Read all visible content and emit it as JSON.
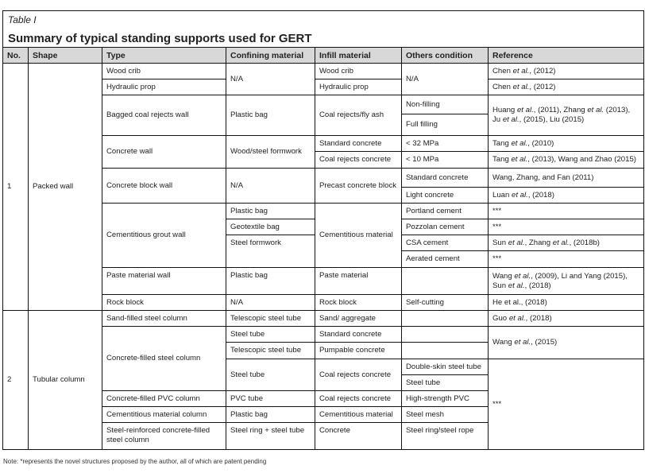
{
  "label": "Table I",
  "title": "Summary of typical standing supports used for GERT",
  "headers": [
    "No.",
    "Shape",
    "Type",
    "Confining material",
    "Infill material",
    "Others condition",
    "Reference"
  ],
  "rows": [
    [
      {
        "t": "1",
        "rs": 14
      },
      {
        "t": "Packed wall",
        "rs": 14
      },
      {
        "t": "Wood crib"
      },
      {
        "t": "N/A",
        "rs": 2
      },
      {
        "t": "Wood crib"
      },
      {
        "t": "N/A",
        "rs": 2
      },
      {
        "t": "Chen et al., (2012)"
      }
    ],
    [
      {
        "t": "Hydraulic  prop"
      },
      {
        "t": "Hydraulic  prop"
      },
      {
        "t": "Chen et al., (2012)"
      }
    ],
    [
      {
        "t": "Bagged coal rejects wall",
        "rs": 2
      },
      {
        "t": "Plastic bag",
        "rs": 2
      },
      {
        "t": "Coal rejects/fly ash",
        "rs": 2
      },
      {
        "t": "Non-filling"
      },
      {
        "t": "Huang et al., (2011), Zhang et al. (2013), Ju et al., (2015), Liu (2015)",
        "rs": 2
      }
    ],
    [
      {
        "t": "Full filling"
      }
    ],
    [
      {
        "t": "Concrete wall",
        "rs": 2
      },
      {
        "t": "Wood/steel formwork",
        "rs": 2
      },
      {
        "t": "Standard concrete"
      },
      {
        "t": "< 32 MPa"
      },
      {
        "t": "Tang et al., (2010)"
      }
    ],
    [
      {
        "t": "Coal rejects concrete"
      },
      {
        "t": "< 10 MPa"
      },
      {
        "t": "Tang et al., (2013), Wang and Zhao (2015)"
      }
    ],
    [
      {
        "t": "Concrete block wall",
        "rs": 2
      },
      {
        "t": "N/A",
        "rs": 2
      },
      {
        "t": "Precast concrete block",
        "rs": 2
      },
      {
        "t": "Standard concrete"
      },
      {
        "t": "Wang, Zhang, and Fan (2011)"
      }
    ],
    [
      {
        "t": "Light concrete"
      },
      {
        "t": "Luan et al., (2018)"
      }
    ],
    [
      {
        "t": "Cementitious grout wall",
        "rs": 4
      },
      {
        "t": "Plastic bag"
      },
      {
        "t": "Cementitious material",
        "rs": 4
      },
      {
        "t": "Portland cement"
      },
      {
        "t": "***"
      }
    ],
    [
      {
        "t": "Geotextile bag"
      },
      {
        "t": "Pozzolan cement"
      },
      {
        "t": "***"
      }
    ],
    [
      {
        "t": "Steel formwork",
        "rs": 2,
        "top": true
      },
      {
        "t": "CSA cement"
      },
      {
        "t": "Sun et al., Zhang et al., (2018b)"
      }
    ],
    [
      {
        "t": "Aerated cement"
      },
      {
        "t": "***"
      }
    ],
    [
      {
        "t": "Paste material wall",
        "top": true
      },
      {
        "t": "Plastic bag",
        "top": true
      },
      {
        "t": "Paste material",
        "top": true
      },
      {
        "t": ""
      },
      {
        "t": "Wang et al., (2009), Li and Yang (2015), Sun et al., (2018)"
      }
    ],
    [
      {
        "t": "Rock block"
      },
      {
        "t": "N/A"
      },
      {
        "t": "Rock block"
      },
      {
        "t": "Self-cutting"
      },
      {
        "t": "He et al., (2018)"
      }
    ],
    [
      {
        "t": "2",
        "rs": 8
      },
      {
        "t": "Tubular column",
        "rs": 8
      },
      {
        "t": "Sand-filled steel column"
      },
      {
        "t": "Telescopic steel tube"
      },
      {
        "t": "Sand/ aggregate"
      },
      {
        "t": ""
      },
      {
        "t": "Guo et al., (2018)"
      }
    ],
    [
      {
        "t": "Concrete-filled steel column",
        "rs": 4
      },
      {
        "t": "Steel tube"
      },
      {
        "t": "Standard concrete"
      },
      {
        "t": ""
      },
      {
        "t": "Wang et al., (2015)",
        "rs": 2
      }
    ],
    [
      {
        "t": "Telescopic steel tube"
      },
      {
        "t": "Pumpable concrete"
      },
      {
        "t": ""
      }
    ],
    [
      {
        "t": "Steel tube",
        "rs": 2
      },
      {
        "t": "Coal rejects concrete",
        "rs": 2
      },
      {
        "t": "Double-skin steel tube"
      },
      {
        "t": "***",
        "rs": 5
      }
    ],
    [
      {
        "t": "Steel tube"
      }
    ],
    [
      {
        "t": "Concrete-filled PVC column"
      },
      {
        "t": "PVC tube"
      },
      {
        "t": "Coal rejects concrete"
      },
      {
        "t": "High-strength PVC"
      }
    ],
    [
      {
        "t": "Cementitious material column"
      },
      {
        "t": "Plastic bag"
      },
      {
        "t": "Cementitious material"
      },
      {
        "t": "Steel mesh"
      }
    ],
    [
      {
        "t": "Steel-reinforced concrete-filled steel column",
        "top": true
      },
      {
        "t": "Steel ring + steel tube",
        "top": true
      },
      {
        "t": "Concrete",
        "top": true
      },
      {
        "t": "Steel ring/steel rope",
        "top": true
      }
    ]
  ],
  "note": "Note: *represents the novel structures proposed by the author, all of which are patent pending"
}
